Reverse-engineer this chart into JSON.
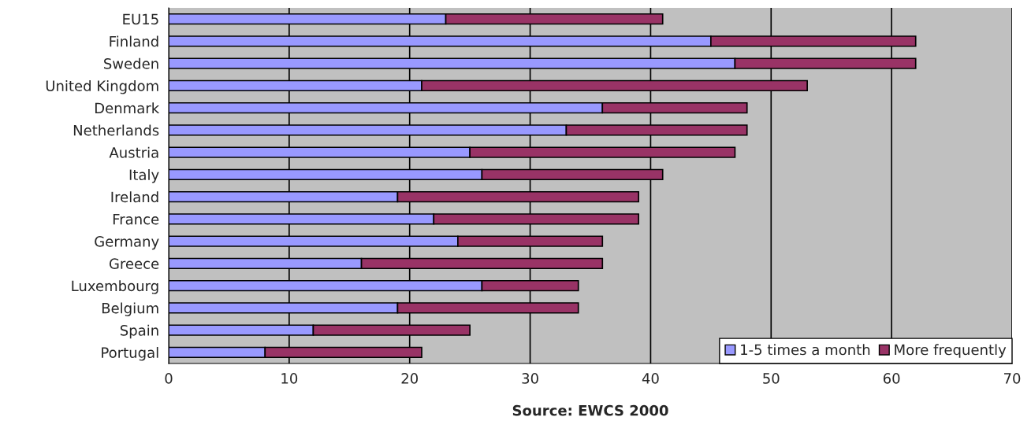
{
  "chart_data": {
    "type": "bar",
    "orientation": "horizontal",
    "stacked": true,
    "categories": [
      "EU15",
      "Finland",
      "Sweden",
      "United Kingdom",
      "Denmark",
      "Netherlands",
      "Austria",
      "Italy",
      "Ireland",
      "France",
      "Germany",
      "Greece",
      "Luxembourg",
      "Belgium",
      "Spain",
      "Portugal"
    ],
    "series": [
      {
        "name": "1-5 times a month",
        "color": "#9999ff",
        "values": [
          23,
          45,
          47,
          21,
          36,
          33,
          25,
          26,
          19,
          22,
          24,
          16,
          26,
          19,
          12,
          8
        ]
      },
      {
        "name": "More frequently",
        "color": "#993366",
        "values": [
          18,
          17,
          15,
          32,
          12,
          15,
          22,
          15,
          20,
          17,
          12,
          20,
          8,
          15,
          13,
          13
        ]
      }
    ],
    "xlim": [
      0,
      70
    ],
    "xticks": [
      0,
      10,
      20,
      30,
      40,
      50,
      60,
      70
    ],
    "grid": "x",
    "legend": "bottom right",
    "annotations": [
      "Source: EWCS 2000"
    ]
  }
}
